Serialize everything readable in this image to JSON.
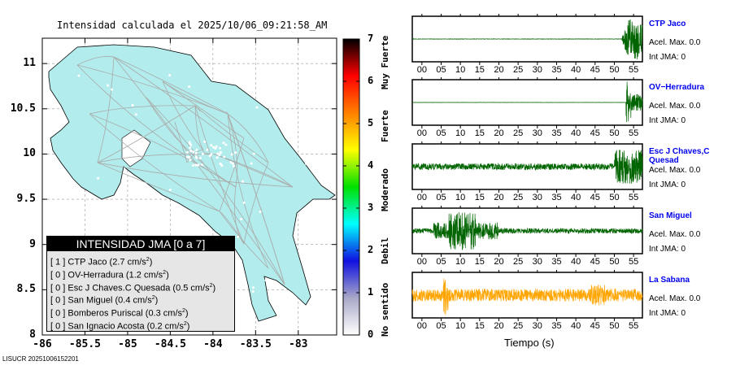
{
  "title": "Intensidad calculada el 2025/10/06_09:21:58_AM",
  "footer": "LISUCR 20251006152201",
  "chart_data": [
    {
      "type": "map",
      "title": "Intensidad calculada el 2025/10/06_09:21:58_AM",
      "xlabel": "",
      "ylabel": "",
      "xlim": [
        -86,
        -82.55
      ],
      "ylim": [
        8,
        11.28
      ],
      "xticks": [
        "-86",
        "-85.5",
        "-85",
        "-84.5",
        "-84",
        "-83.5",
        "-83"
      ],
      "yticks": [
        "8",
        "8.5",
        "9",
        "9.5",
        "10",
        "10.5",
        "11"
      ],
      "colorbar": {
        "range": [
          0,
          7
        ],
        "ticks": [
          "0",
          "1",
          "2",
          "3",
          "4",
          "5",
          "6",
          "7"
        ],
        "labels": [
          "No sentido",
          "Debil",
          "Moderado",
          "Fuerte",
          "Muy Fuerte"
        ],
        "colors": [
          "#ffffff",
          "#a8a8c8",
          "#1010e0",
          "#00ffff",
          "#00e000",
          "#ffff00",
          "#ff8000",
          "#ff0000",
          "#000000"
        ]
      },
      "legend": {
        "title": "INTENSIDAD JMA [0 a 7]",
        "items": [
          {
            "int": "[ 1 ]",
            "text": "CTP Jaco (2.7 cm/s",
            "sup": "2",
            "end": ")"
          },
          {
            "int": "[ 0 ]",
            "text": "OV-Herradura (1.2 cm/s",
            "sup": "2",
            "end": ")"
          },
          {
            "int": "[ 0 ]",
            "text": "Esc J Chaves.C Quesada (0.5 cm/s",
            "sup": "2",
            "end": ")"
          },
          {
            "int": "[ 0 ]",
            "text": "San Miguel (0.4 cm/s",
            "sup": "2",
            "end": ")"
          },
          {
            "int": "[ 0 ]",
            "text": "Bomberos Puriscal (0.3 cm/s",
            "sup": "2",
            "end": ")"
          },
          {
            "int": "[ 0 ]",
            "text": "San Ignacio Acosta (0.2 cm/s",
            "sup": "2",
            "end": ")"
          }
        ]
      }
    },
    {
      "type": "line",
      "xlabel": "Tiempo (s)",
      "xticks": [
        "00",
        "05",
        "10",
        "15",
        "20",
        "25",
        "30",
        "35",
        "40",
        "45",
        "50",
        "55"
      ],
      "xlim": [
        -2.5,
        57.3
      ],
      "stations": [
        {
          "name": "CTP Jaco",
          "acel": "Acel. Max. 0.0",
          "int": "Int JMA: 0",
          "color": "#006400"
        },
        {
          "name": "OV−Herradura",
          "acel": "Acel. Max. 0.0",
          "int": "Int JMA: 0",
          "color": "#006400"
        },
        {
          "name": "Esc J Chaves,C Quesad",
          "acel": "Acel. Max. 0.0",
          "int": "Int JMA: 0",
          "color": "#006400"
        },
        {
          "name": "San Miguel",
          "acel": "Acel. Max. 0.0",
          "int": "Int JMA: 0",
          "color": "#006400"
        },
        {
          "name": "La Sabana",
          "acel": "Acel. Max. 0.0",
          "int": "Int JMA: 0",
          "color": "#ffa500"
        }
      ]
    }
  ]
}
